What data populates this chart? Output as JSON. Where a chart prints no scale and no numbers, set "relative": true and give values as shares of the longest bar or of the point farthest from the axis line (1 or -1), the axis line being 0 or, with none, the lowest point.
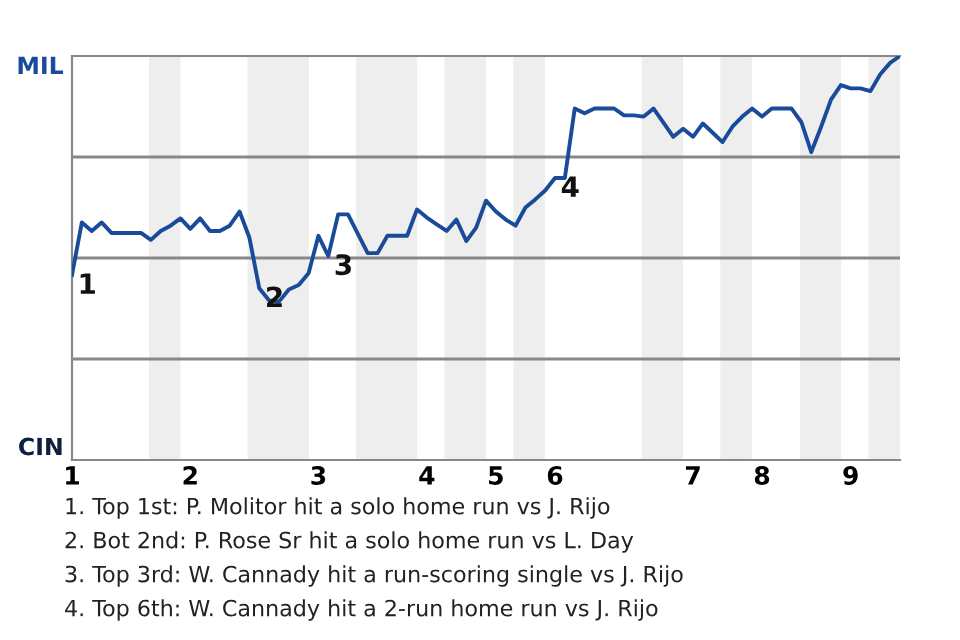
{
  "chart_data": {
    "type": "line",
    "relative": true,
    "categories": [
      "1",
      null,
      null,
      null,
      null,
      null,
      null,
      null,
      null,
      null,
      null,
      null,
      "2",
      null,
      null,
      null,
      null,
      null,
      null,
      null,
      null,
      null,
      null,
      null,
      null,
      "3",
      null,
      null,
      null,
      null,
      null,
      null,
      null,
      null,
      null,
      null,
      "4",
      null,
      null,
      null,
      null,
      null,
      null,
      "5",
      null,
      null,
      null,
      null,
      null,
      "6",
      null,
      null,
      null,
      null,
      null,
      null,
      null,
      null,
      null,
      null,
      null,
      null,
      null,
      "7",
      null,
      null,
      null,
      null,
      null,
      null,
      "8",
      null,
      null,
      null,
      null,
      null,
      null,
      null,
      null,
      "9",
      null,
      null,
      null,
      null,
      null
    ],
    "series": [
      {
        "color": "#1a4a9a",
        "values": [
          0.458,
          0.588,
          0.567,
          0.588,
          0.562,
          0.562,
          0.562,
          0.562,
          0.545,
          0.567,
          0.58,
          0.598,
          0.572,
          0.598,
          0.567,
          0.567,
          0.58,
          0.615,
          0.55,
          0.425,
          0.395,
          0.392,
          0.422,
          0.433,
          0.462,
          0.555,
          0.505,
          0.608,
          0.608,
          0.56,
          0.512,
          0.512,
          0.555,
          0.555,
          0.555,
          0.62,
          0.6,
          0.583,
          0.567,
          0.595,
          0.542,
          0.575,
          0.642,
          0.615,
          0.595,
          0.58,
          0.625,
          0.645,
          0.667,
          0.698,
          0.698,
          0.87,
          0.858,
          0.87,
          0.87,
          0.87,
          0.853,
          0.853,
          0.85,
          0.87,
          0.835,
          0.8,
          0.82,
          0.8,
          0.833,
          0.81,
          0.787,
          0.825,
          0.85,
          0.87,
          0.85,
          0.87,
          0.87,
          0.87,
          0.836,
          0.762,
          0.825,
          0.892,
          0.928,
          0.92,
          0.92,
          0.913,
          0.955,
          0.983,
          1.0
        ]
      }
    ],
    "ref_lines": [
      {
        "axis": "y",
        "value": 0.25,
        "color": "#888888"
      },
      {
        "axis": "y",
        "value": 0.5,
        "color": "#888888"
      },
      {
        "axis": "y",
        "value": 0.75,
        "color": "#888888"
      }
    ],
    "annotations": [
      "MIL",
      "CIN",
      {
        "text": "1",
        "x": "1",
        "y": 0.458
      },
      {
        "text": "2",
        "y": 0.425
      },
      {
        "text": "3",
        "y": 0.505
      },
      {
        "text": "4",
        "y": 0.698
      },
      "1. Top 1st: P. Molitor hit a solo home run vs J. Rijo",
      "2. Bot 2nd: P. Rose Sr hit a solo home run vs L. Day",
      "3. Top 3rd: W. Cannady hit a run-scoring single vs J. Rijo",
      "4. Top 6th: W. Cannady hit a 2-run home run vs J. Rijo"
    ],
    "marker": "none",
    "line_style": "solid"
  }
}
